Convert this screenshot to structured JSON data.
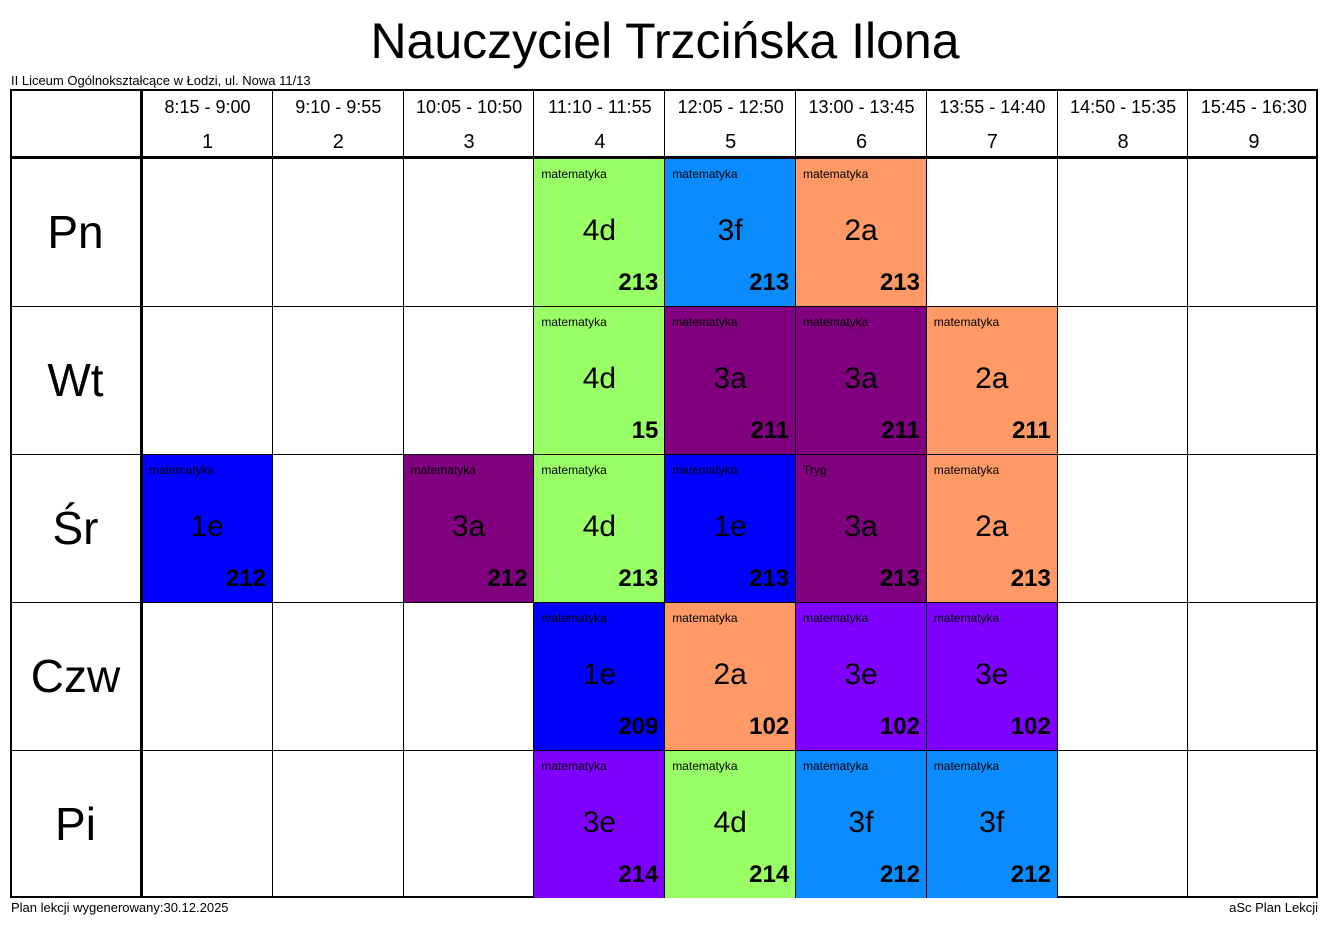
{
  "title": "Nauczyciel Trzcińska Ilona",
  "school": "II Liceum Ogólnokształcące w Łodzi, ul. Nowa 11/13",
  "footer": {
    "generated": "Plan lekcji wygenerowany:30.12.2025",
    "app": "aSc Plan Lekcji"
  },
  "periods": [
    {
      "time": "8:15 - 9:00",
      "num": "1"
    },
    {
      "time": "9:10 - 9:55",
      "num": "2"
    },
    {
      "time": "10:05 - 10:50",
      "num": "3"
    },
    {
      "time": "11:10 - 11:55",
      "num": "4"
    },
    {
      "time": "12:05 - 12:50",
      "num": "5"
    },
    {
      "time": "13:00 - 13:45",
      "num": "6"
    },
    {
      "time": "13:55 - 14:40",
      "num": "7"
    },
    {
      "time": "14:50 - 15:35",
      "num": "8"
    },
    {
      "time": "15:45 - 16:30",
      "num": "9"
    }
  ],
  "days": [
    "Pn",
    "Wt",
    "Śr",
    "Czw",
    "Pi"
  ],
  "colors": {
    "green": "#99ff66",
    "sky": "#0a8cff",
    "orange": "#ff9966",
    "plum": "#800080",
    "blue": "#0000ff",
    "violet": "#8000ff"
  },
  "lessons": [
    {
      "day": 0,
      "period": 4,
      "subject": "matematyka",
      "class": "4d",
      "room": "213",
      "color": "green"
    },
    {
      "day": 0,
      "period": 5,
      "subject": "matematyka",
      "class": "3f",
      "room": "213",
      "color": "sky"
    },
    {
      "day": 0,
      "period": 6,
      "subject": "matematyka",
      "class": "2a",
      "room": "213",
      "color": "orange"
    },
    {
      "day": 1,
      "period": 4,
      "subject": "matematyka",
      "class": "4d",
      "room": "15",
      "color": "green"
    },
    {
      "day": 1,
      "period": 5,
      "subject": "matematyka",
      "class": "3a",
      "room": "211",
      "color": "plum"
    },
    {
      "day": 1,
      "period": 6,
      "subject": "matematyka",
      "class": "3a",
      "room": "211",
      "color": "plum"
    },
    {
      "day": 1,
      "period": 7,
      "subject": "matematyka",
      "class": "2a",
      "room": "211",
      "color": "orange"
    },
    {
      "day": 2,
      "period": 1,
      "subject": "matematyka",
      "class": "1e",
      "room": "212",
      "color": "blue"
    },
    {
      "day": 2,
      "period": 3,
      "subject": "matematyka",
      "class": "3a",
      "room": "212",
      "color": "plum"
    },
    {
      "day": 2,
      "period": 4,
      "subject": "matematyka",
      "class": "4d",
      "room": "213",
      "color": "green"
    },
    {
      "day": 2,
      "period": 5,
      "subject": "matematyka",
      "class": "1e",
      "room": "213",
      "color": "blue"
    },
    {
      "day": 2,
      "period": 6,
      "subject": "Tryg",
      "class": "3a",
      "room": "213",
      "color": "plum"
    },
    {
      "day": 2,
      "period": 7,
      "subject": "matematyka",
      "class": "2a",
      "room": "213",
      "color": "orange"
    },
    {
      "day": 3,
      "period": 4,
      "subject": "matematyka",
      "class": "1e",
      "room": "209",
      "color": "blue"
    },
    {
      "day": 3,
      "period": 5,
      "subject": "matematyka",
      "class": "2a",
      "room": "102",
      "color": "orange"
    },
    {
      "day": 3,
      "period": 6,
      "subject": "matematyka",
      "class": "3e",
      "room": "102",
      "color": "violet"
    },
    {
      "day": 3,
      "period": 7,
      "subject": "matematyka",
      "class": "3e",
      "room": "102",
      "color": "violet"
    },
    {
      "day": 4,
      "period": 4,
      "subject": "matematyka",
      "class": "3e",
      "room": "214",
      "color": "violet"
    },
    {
      "day": 4,
      "period": 5,
      "subject": "matematyka",
      "class": "4d",
      "room": "214",
      "color": "green"
    },
    {
      "day": 4,
      "period": 6,
      "subject": "matematyka",
      "class": "3f",
      "room": "212",
      "color": "sky"
    },
    {
      "day": 4,
      "period": 7,
      "subject": "matematyka",
      "class": "3f",
      "room": "212",
      "color": "sky"
    }
  ]
}
